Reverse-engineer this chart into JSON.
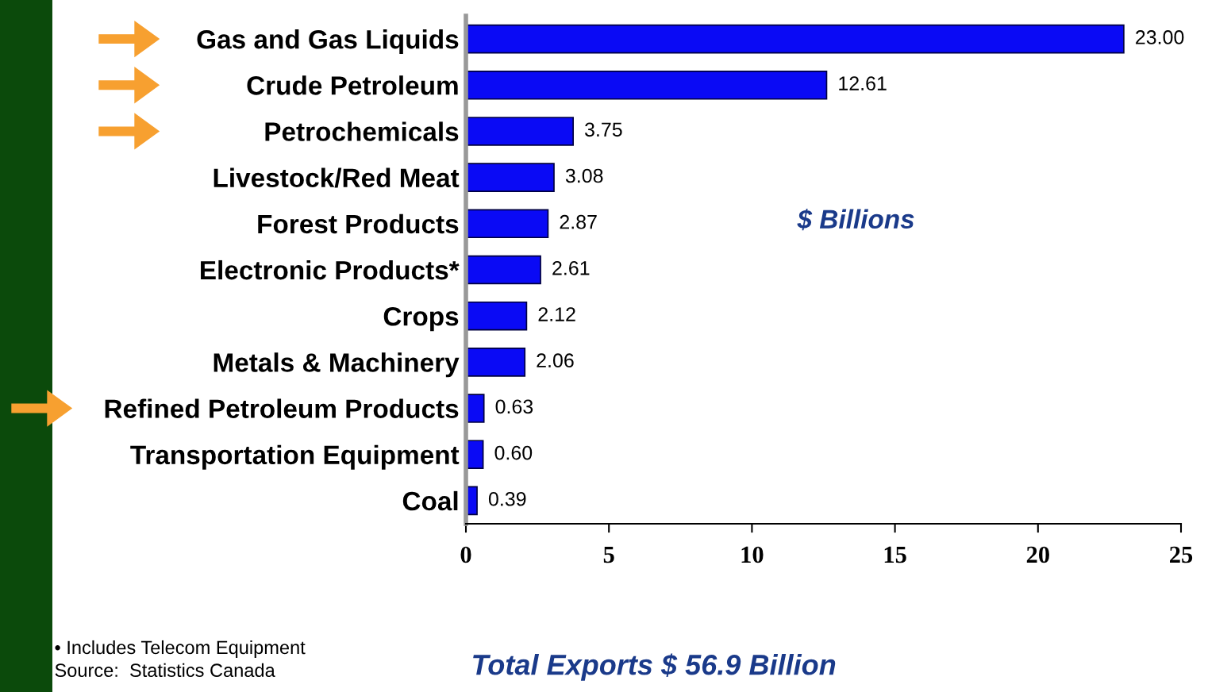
{
  "chart_data": {
    "type": "bar",
    "orientation": "horizontal",
    "categories": [
      "Gas and Gas Liquids",
      "Crude Petroleum",
      "Petrochemicals",
      "Livestock/Red Meat",
      "Forest Products",
      "Electronic Products*",
      "Crops",
      "Metals & Machinery",
      "Refined Petroleum Products",
      "Transportation Equipment",
      "Coal"
    ],
    "values": [
      23.0,
      12.61,
      3.75,
      3.08,
      2.87,
      2.61,
      2.12,
      2.06,
      0.63,
      0.6,
      0.39
    ],
    "value_labels": [
      "23.00",
      "12.61",
      "3.75",
      "3.08",
      "2.87",
      "2.61",
      "2.12",
      "2.06",
      "0.63",
      "0.60",
      "0.39"
    ],
    "color": "#0a0af5",
    "xlim": [
      0,
      25
    ],
    "xticks": [
      0,
      5,
      10,
      15,
      20,
      25
    ],
    "grid": false,
    "legend": false,
    "annotations": [
      "$ Billions",
      "• Includes Telecom Equipment",
      "Source:  Statistics Canada",
      "Total Exports $ 56.9 Billion"
    ]
  }
}
